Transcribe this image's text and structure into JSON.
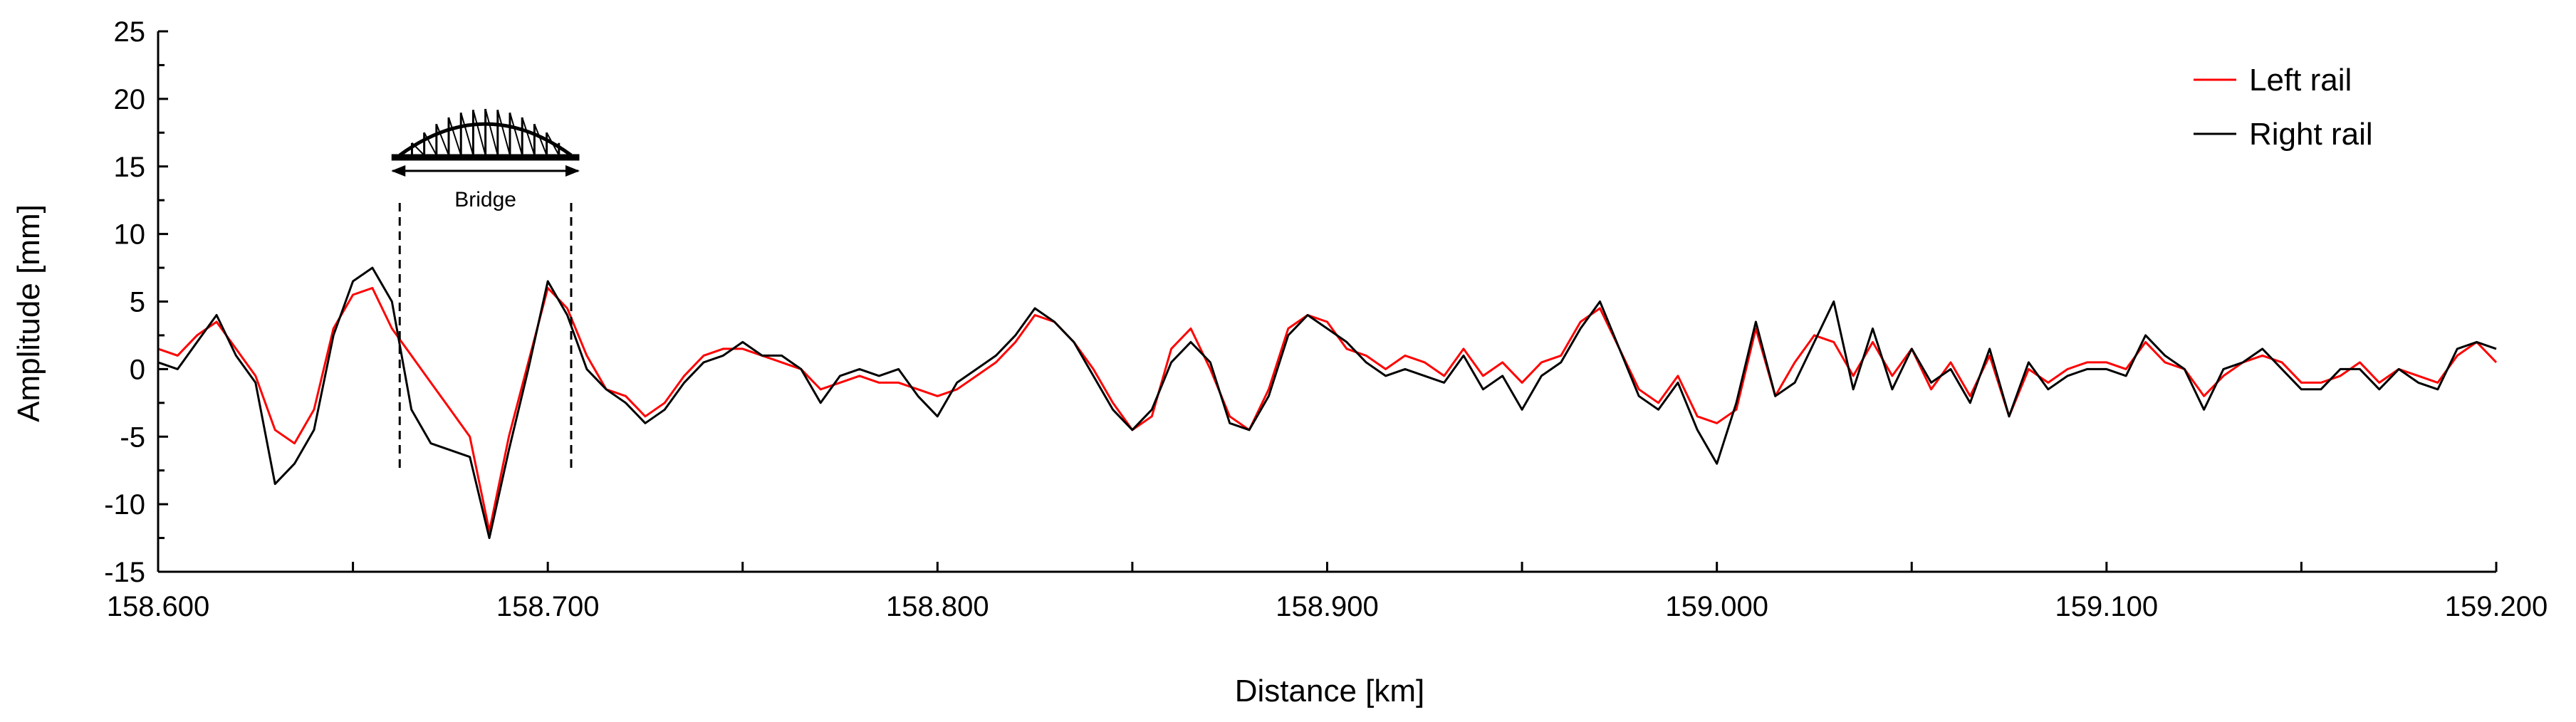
{
  "chart_data": {
    "type": "line",
    "title": "",
    "xlabel": "Distance [km]",
    "ylabel": "Amplitude [mm]",
    "xlim": [
      158.6,
      159.2
    ],
    "ylim": [
      -15,
      25
    ],
    "x_ticks": [
      158.6,
      158.7,
      158.8,
      158.9,
      159.0,
      159.1,
      159.2
    ],
    "x_tick_labels": [
      "158.600",
      "158.700",
      "158.800",
      "158.900",
      "159.000",
      "159.100",
      "159.200"
    ],
    "y_ticks": [
      -15,
      -10,
      -5,
      0,
      5,
      10,
      15,
      20,
      25
    ],
    "y_tick_labels": [
      "-15",
      "-10",
      "-5",
      "0",
      "5",
      "10",
      "15",
      "20",
      "25"
    ],
    "grid": false,
    "legend_position": "top-right",
    "series": [
      {
        "name": "Left rail",
        "color": "#ff0000",
        "x": [
          158.6,
          158.605,
          158.61,
          158.615,
          158.62,
          158.625,
          158.63,
          158.635,
          158.64,
          158.645,
          158.65,
          158.655,
          158.66,
          158.665,
          158.67,
          158.675,
          158.68,
          158.685,
          158.69,
          158.695,
          158.7,
          158.705,
          158.71,
          158.715,
          158.72,
          158.725,
          158.73,
          158.735,
          158.74,
          158.745,
          158.75,
          158.755,
          158.76,
          158.765,
          158.77,
          158.775,
          158.78,
          158.785,
          158.79,
          158.795,
          158.8,
          158.805,
          158.81,
          158.815,
          158.82,
          158.825,
          158.83,
          158.835,
          158.84,
          158.845,
          158.85,
          158.855,
          158.86,
          158.865,
          158.87,
          158.875,
          158.88,
          158.885,
          158.89,
          158.895,
          158.9,
          158.905,
          158.91,
          158.915,
          158.92,
          158.925,
          158.93,
          158.935,
          158.94,
          158.945,
          158.95,
          158.955,
          158.96,
          158.965,
          158.97,
          158.975,
          158.98,
          158.985,
          158.99,
          158.995,
          159.0,
          159.005,
          159.01,
          159.015,
          159.02,
          159.025,
          159.03,
          159.035,
          159.04,
          159.045,
          159.05,
          159.055,
          159.06,
          159.065,
          159.07,
          159.075,
          159.08,
          159.085,
          159.09,
          159.095,
          159.1,
          159.105,
          159.11,
          159.115,
          159.12,
          159.125,
          159.13,
          159.135,
          159.14,
          159.145,
          159.15,
          159.155,
          159.16,
          159.165,
          159.17,
          159.175,
          159.18,
          159.185,
          159.19,
          159.195,
          159.2
        ],
        "y": [
          1.5,
          1.0,
          2.5,
          3.5,
          1.5,
          -0.5,
          -4.5,
          -5.5,
          -3.0,
          3.0,
          5.5,
          6.0,
          3.0,
          1.0,
          -1.0,
          -3.0,
          -5.0,
          -12.0,
          -5.0,
          0.5,
          6.0,
          4.5,
          1.0,
          -1.5,
          -2.0,
          -3.5,
          -2.5,
          -0.5,
          1.0,
          1.5,
          1.5,
          1.0,
          0.5,
          0.0,
          -1.5,
          -1.0,
          -0.5,
          -1.0,
          -1.0,
          -1.5,
          -2.0,
          -1.5,
          -0.5,
          0.5,
          2.0,
          4.0,
          3.5,
          2.0,
          0.0,
          -2.5,
          -4.5,
          -3.5,
          1.5,
          3.0,
          0.0,
          -3.5,
          -4.5,
          -1.5,
          3.0,
          4.0,
          3.5,
          1.5,
          1.0,
          0.0,
          1.0,
          0.5,
          -0.5,
          1.5,
          -0.5,
          0.5,
          -1.0,
          0.5,
          1.0,
          3.5,
          4.5,
          1.5,
          -1.5,
          -2.5,
          -0.5,
          -3.5,
          -4.0,
          -3.0,
          3.0,
          -2.0,
          0.5,
          2.5,
          2.0,
          -0.5,
          2.0,
          -0.5,
          1.5,
          -1.5,
          0.5,
          -2.0,
          1.0,
          -3.5,
          0.0,
          -1.0,
          0.0,
          0.5,
          0.5,
          0.0,
          2.0,
          0.5,
          0.0,
          -2.0,
          -0.5,
          0.5,
          1.0,
          0.5,
          -1.0,
          -1.0,
          -0.5,
          0.5,
          -1.0,
          0.0,
          -0.5,
          -1.0,
          1.0,
          2.0,
          0.5
        ]
      },
      {
        "name": "Right rail",
        "color": "#000000",
        "x": [
          158.6,
          158.605,
          158.61,
          158.615,
          158.62,
          158.625,
          158.63,
          158.635,
          158.64,
          158.645,
          158.65,
          158.655,
          158.66,
          158.665,
          158.67,
          158.675,
          158.68,
          158.685,
          158.69,
          158.695,
          158.7,
          158.705,
          158.71,
          158.715,
          158.72,
          158.725,
          158.73,
          158.735,
          158.74,
          158.745,
          158.75,
          158.755,
          158.76,
          158.765,
          158.77,
          158.775,
          158.78,
          158.785,
          158.79,
          158.795,
          158.8,
          158.805,
          158.81,
          158.815,
          158.82,
          158.825,
          158.83,
          158.835,
          158.84,
          158.845,
          158.85,
          158.855,
          158.86,
          158.865,
          158.87,
          158.875,
          158.88,
          158.885,
          158.89,
          158.895,
          158.9,
          158.905,
          158.91,
          158.915,
          158.92,
          158.925,
          158.93,
          158.935,
          158.94,
          158.945,
          158.95,
          158.955,
          158.96,
          158.965,
          158.97,
          158.975,
          158.98,
          158.985,
          158.99,
          158.995,
          159.0,
          159.005,
          159.01,
          159.015,
          159.02,
          159.025,
          159.03,
          159.035,
          159.04,
          159.045,
          159.05,
          159.055,
          159.06,
          159.065,
          159.07,
          159.075,
          159.08,
          159.085,
          159.09,
          159.095,
          159.1,
          159.105,
          159.11,
          159.115,
          159.12,
          159.125,
          159.13,
          159.135,
          159.14,
          159.145,
          159.15,
          159.155,
          159.16,
          159.165,
          159.17,
          159.175,
          159.18,
          159.185,
          159.19,
          159.195,
          159.2
        ],
        "y": [
          0.5,
          0.0,
          2.0,
          4.0,
          1.0,
          -1.0,
          -8.5,
          -7.0,
          -4.5,
          2.5,
          6.5,
          7.5,
          5.0,
          -3.0,
          -5.5,
          -6.0,
          -6.5,
          -12.5,
          -6.0,
          0.0,
          6.5,
          4.0,
          0.0,
          -1.5,
          -2.5,
          -4.0,
          -3.0,
          -1.0,
          0.5,
          1.0,
          2.0,
          1.0,
          1.0,
          0.0,
          -2.5,
          -0.5,
          0.0,
          -0.5,
          0.0,
          -2.0,
          -3.5,
          -1.0,
          0.0,
          1.0,
          2.5,
          4.5,
          3.5,
          2.0,
          -0.5,
          -3.0,
          -4.5,
          -3.0,
          0.5,
          2.0,
          0.5,
          -4.0,
          -4.5,
          -2.0,
          2.5,
          4.0,
          3.0,
          2.0,
          0.5,
          -0.5,
          0.0,
          -0.5,
          -1.0,
          1.0,
          -1.5,
          -0.5,
          -3.0,
          -0.5,
          0.5,
          3.0,
          5.0,
          1.5,
          -2.0,
          -3.0,
          -1.0,
          -4.5,
          -7.0,
          -2.5,
          3.5,
          -2.0,
          -1.0,
          2.0,
          5.0,
          -1.5,
          3.0,
          -1.5,
          1.5,
          -1.0,
          0.0,
          -2.5,
          1.5,
          -3.5,
          0.5,
          -1.5,
          -0.5,
          0.0,
          0.0,
          -0.5,
          2.5,
          1.0,
          0.0,
          -3.0,
          0.0,
          0.5,
          1.5,
          0.0,
          -1.5,
          -1.5,
          0.0,
          0.0,
          -1.5,
          0.0,
          -1.0,
          -1.5,
          1.5,
          2.0,
          1.5
        ]
      }
    ],
    "annotations": [
      {
        "label": "Bridge",
        "x_start": 158.662,
        "x_end": 158.706
      }
    ]
  }
}
